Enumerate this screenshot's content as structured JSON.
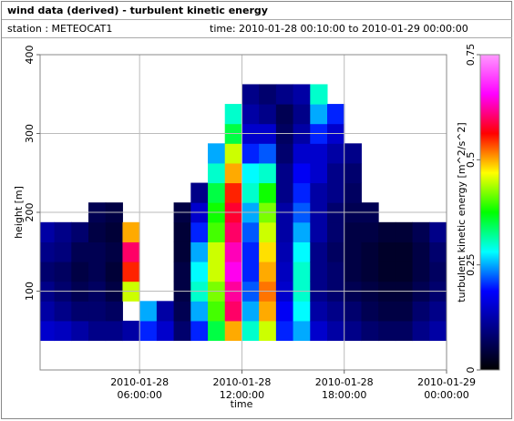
{
  "chart_data": {
    "type": "heatmap",
    "title": "wind data (derived) - turbulent kinetic energy",
    "station": "station : METEOCAT1",
    "time_range": "time: 2010-01-28 00:10:00 to 2010-01-29 00:00:00",
    "x_label": "time",
    "y_label": "height [m]",
    "colorbar_label": "turbulent kinetic energy [m^2/s^2]",
    "xlim": [
      "2010-01-28 00:10:00",
      "2010-01-29 00:00:00"
    ],
    "xticks": [
      "2010-01-28 06:00:00",
      "2010-01-28 12:00:00",
      "2010-01-28 18:00:00",
      "2010-01-29 00:00:00"
    ],
    "ylim": [
      0,
      400
    ],
    "yticks": [
      100,
      200,
      300,
      400
    ],
    "zlim": [
      0,
      0.75
    ],
    "zticks": [
      0,
      0.25,
      0.5,
      0.75
    ],
    "grid": true,
    "colorscale": [
      "#000000",
      "#000080",
      "#0000ff",
      "#00ffff",
      "#00ff00",
      "#ffff00",
      "#ff0000",
      "#ff00ff",
      "#ff99ff"
    ],
    "x": [
      "2010-01-28 00:30:00",
      "2010-01-28 01:30:00",
      "2010-01-28 02:30:00",
      "2010-01-28 03:30:00",
      "2010-01-28 04:30:00",
      "2010-01-28 05:30:00",
      "2010-01-28 06:30:00",
      "2010-01-28 07:30:00",
      "2010-01-28 08:30:00",
      "2010-01-28 09:30:00",
      "2010-01-28 10:30:00",
      "2010-01-28 11:30:00",
      "2010-01-28 12:30:00",
      "2010-01-28 13:30:00",
      "2010-01-28 14:30:00",
      "2010-01-28 15:30:00",
      "2010-01-28 16:30:00",
      "2010-01-28 17:30:00",
      "2010-01-28 18:30:00",
      "2010-01-28 19:30:00",
      "2010-01-28 20:30:00",
      "2010-01-28 21:30:00",
      "2010-01-28 22:30:00",
      "2010-01-28 23:30:00"
    ],
    "y": [
      50,
      75,
      100,
      125,
      150,
      175,
      200,
      225,
      250,
      275,
      300,
      325,
      350
    ],
    "values": [
      [
        0.15,
        0.12,
        0.1,
        0.08,
        0.1,
        0.12,
        null,
        null,
        null,
        null,
        null,
        null,
        null
      ],
      [
        0.14,
        0.1,
        0.08,
        0.07,
        0.09,
        0.1,
        null,
        null,
        null,
        null,
        null,
        null,
        null
      ],
      [
        0.12,
        0.08,
        0.06,
        0.05,
        0.06,
        0.08,
        null,
        null,
        null,
        null,
        null,
        null,
        null
      ],
      [
        0.1,
        0.08,
        0.07,
        0.06,
        0.06,
        0.05,
        0.06,
        null,
        null,
        null,
        null,
        null,
        null
      ],
      [
        0.1,
        0.07,
        0.05,
        0.04,
        0.05,
        0.04,
        0.05,
        null,
        null,
        null,
        null,
        null,
        null
      ],
      [
        0.12,
        null,
        0.45,
        0.55,
        0.6,
        0.5,
        null,
        null,
        null,
        null,
        null,
        null,
        null
      ],
      [
        0.2,
        0.25,
        null,
        null,
        null,
        null,
        null,
        null,
        null,
        null,
        null,
        null,
        null
      ],
      [
        0.15,
        0.12,
        null,
        null,
        null,
        null,
        null,
        null,
        null,
        null,
        null,
        null,
        null
      ],
      [
        0.08,
        0.06,
        0.05,
        0.05,
        0.04,
        0.04,
        0.05,
        null,
        null,
        null,
        null,
        null,
        null
      ],
      [
        0.2,
        0.25,
        0.3,
        0.28,
        0.25,
        0.2,
        0.15,
        0.1,
        null,
        null,
        null,
        null,
        null
      ],
      [
        0.35,
        0.4,
        0.42,
        0.45,
        0.45,
        0.4,
        0.38,
        0.35,
        0.3,
        0.25,
        null,
        null,
        null
      ],
      [
        0.5,
        0.6,
        0.62,
        0.65,
        0.63,
        0.6,
        0.58,
        0.55,
        0.5,
        0.45,
        0.35,
        0.3,
        null
      ],
      [
        0.3,
        0.25,
        0.22,
        0.2,
        0.2,
        0.22,
        0.25,
        0.3,
        0.28,
        0.2,
        0.15,
        0.12,
        0.1
      ],
      [
        0.45,
        0.5,
        0.52,
        0.5,
        0.48,
        0.45,
        0.42,
        0.38,
        0.3,
        0.22,
        0.15,
        0.1,
        0.08
      ],
      [
        0.2,
        0.18,
        0.15,
        0.14,
        0.13,
        0.12,
        0.12,
        0.1,
        0.1,
        0.08,
        0.07,
        0.06,
        0.1
      ],
      [
        0.25,
        0.28,
        0.3,
        0.3,
        0.28,
        0.25,
        0.22,
        0.2,
        0.18,
        0.15,
        0.12,
        0.1,
        0.12
      ],
      [
        0.15,
        0.12,
        0.1,
        0.1,
        0.1,
        0.12,
        0.12,
        0.12,
        0.15,
        0.15,
        0.2,
        0.25,
        0.3
      ],
      [
        0.12,
        0.1,
        0.08,
        0.08,
        0.07,
        0.08,
        0.08,
        0.1,
        0.1,
        0.12,
        0.15,
        0.2,
        null
      ],
      [
        0.1,
        0.08,
        0.06,
        0.05,
        0.05,
        0.05,
        0.06,
        0.07,
        0.08,
        0.1,
        null,
        null,
        null
      ],
      [
        0.08,
        0.06,
        0.05,
        0.04,
        0.04,
        0.05,
        0.06,
        null,
        null,
        null,
        null,
        null,
        null
      ],
      [
        0.07,
        0.05,
        0.04,
        0.03,
        0.03,
        0.04,
        null,
        null,
        null,
        null,
        null,
        null,
        null
      ],
      [
        0.07,
        0.05,
        0.04,
        0.03,
        0.03,
        0.04,
        null,
        null,
        null,
        null,
        null,
        null,
        null
      ],
      [
        0.1,
        0.08,
        0.06,
        0.05,
        0.05,
        0.06,
        null,
        null,
        null,
        null,
        null,
        null,
        null
      ],
      [
        0.12,
        0.1,
        0.08,
        0.07,
        0.08,
        0.1,
        null,
        null,
        null,
        null,
        null,
        null,
        null
      ]
    ]
  }
}
